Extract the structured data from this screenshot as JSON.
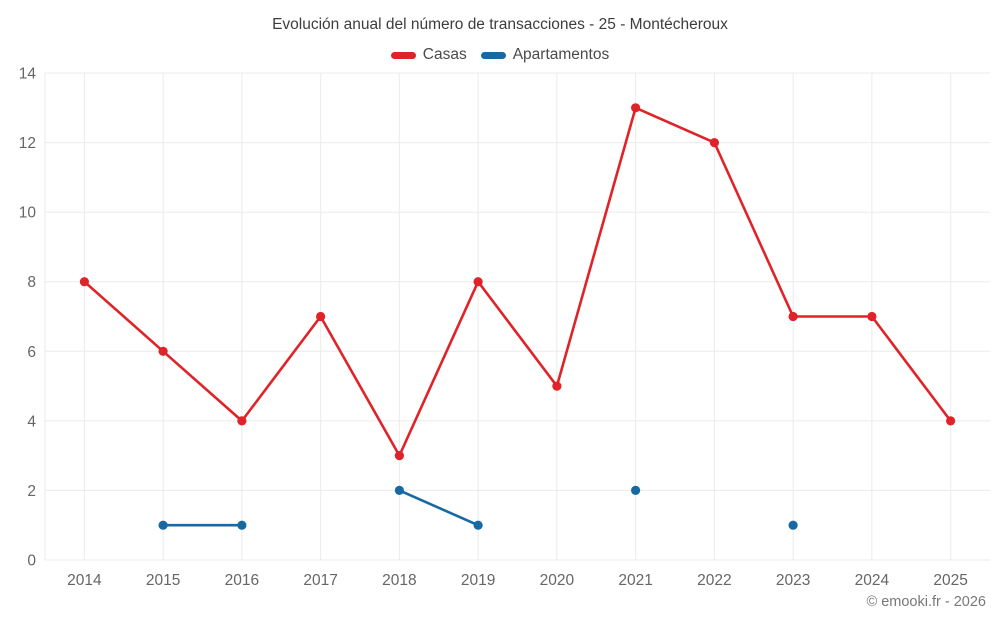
{
  "chart": {
    "title": "Evolución anual del número de transacciones - 25 - Montécheroux",
    "copyright": "© emooki.fr - 2026"
  },
  "chart_data": {
    "type": "line",
    "title": "Evolución anual del número de transacciones - 25 - Montécheroux",
    "categories": [
      "2014",
      "2015",
      "2016",
      "2017",
      "2018",
      "2019",
      "2020",
      "2021",
      "2022",
      "2023",
      "2024",
      "2025"
    ],
    "series": [
      {
        "name": "Casas",
        "color": "#e02328",
        "values": [
          8,
          6,
          4,
          7,
          3,
          8,
          5,
          13,
          12,
          7,
          7,
          4
        ]
      },
      {
        "name": "Apartamentos",
        "color": "#1669a2",
        "values": [
          null,
          1,
          1,
          null,
          2,
          1,
          null,
          2,
          null,
          1,
          null,
          null
        ]
      }
    ],
    "xlabel": "",
    "ylabel": "",
    "ylim": [
      0,
      14
    ],
    "ytick_step": 2,
    "grid": true,
    "legend_position": "top",
    "span_gaps": false
  }
}
